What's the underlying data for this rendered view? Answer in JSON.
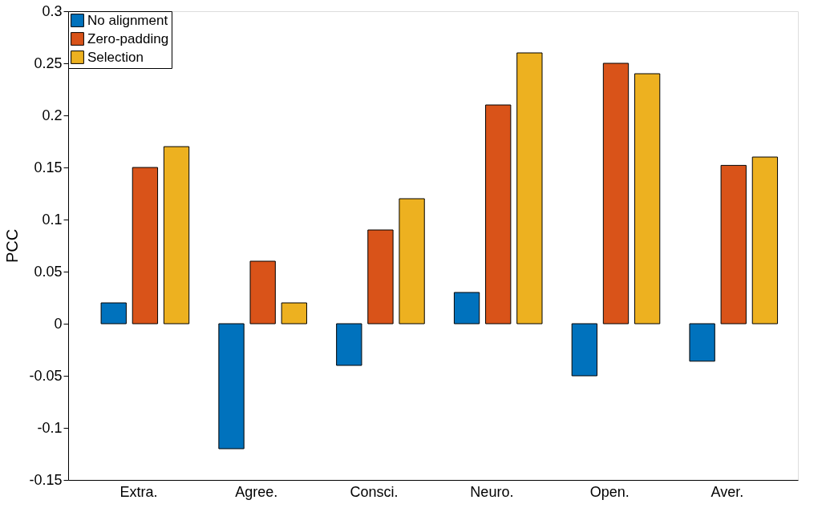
{
  "chart_data": {
    "type": "bar",
    "ylabel": "PCC",
    "categories": [
      "Extra.",
      "Agree.",
      "Consci.",
      "Neuro.",
      "Open.",
      "Aver."
    ],
    "series": [
      {
        "name": "No alignment",
        "color": "#0072bd",
        "values": [
          0.02,
          -0.12,
          -0.04,
          0.03,
          -0.05,
          -0.036
        ]
      },
      {
        "name": "Zero-padding",
        "color": "#d95319",
        "values": [
          0.15,
          0.06,
          0.09,
          0.21,
          0.25,
          0.152
        ]
      },
      {
        "name": "Selection",
        "color": "#edb120",
        "values": [
          0.17,
          0.02,
          0.12,
          0.26,
          0.24,
          0.16
        ]
      }
    ],
    "ylim": [
      -0.15,
      0.3
    ],
    "yticks": [
      -0.15,
      -0.1,
      -0.05,
      0,
      0.05,
      0.1,
      0.15,
      0.2,
      0.25,
      0.3
    ],
    "grid": false,
    "legend": "top left"
  }
}
